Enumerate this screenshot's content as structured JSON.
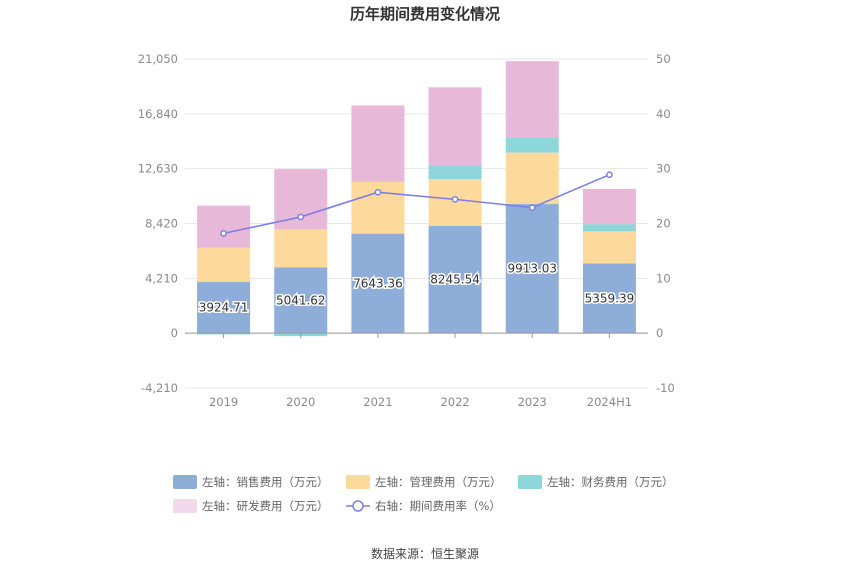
{
  "chart_data": {
    "type": "bar",
    "title": "历年期间费用变化情况",
    "categories": [
      "2019",
      "2020",
      "2021",
      "2022",
      "2023",
      "2024H1"
    ],
    "left_axis": {
      "ticks": [
        -4210,
        0,
        4210,
        8420,
        12630,
        16840,
        21050
      ],
      "tick_labels": [
        "-4,210",
        "0",
        "4,210",
        "8,420",
        "12,630",
        "16,840",
        "21,050"
      ],
      "ylim": [
        -4210,
        21050
      ]
    },
    "right_axis": {
      "ticks": [
        -10,
        0,
        10,
        20,
        30,
        40,
        50
      ],
      "tick_labels": [
        "-10",
        "0",
        "10",
        "20",
        "30",
        "40",
        "50"
      ],
      "ylim": [
        -10,
        50
      ]
    },
    "series": [
      {
        "name": "左轴：销售费用（万元）",
        "type": "bar",
        "axis": "left",
        "color": "#8eadd9",
        "values": [
          3924.71,
          5041.62,
          7643.36,
          8245.54,
          9913.03,
          5359.39
        ],
        "labels": [
          "3924.71",
          "5041.62",
          "7643.36",
          "8245.54",
          "9913.03",
          "5359.39"
        ]
      },
      {
        "name": "左轴：管理费用（万元）",
        "type": "bar",
        "axis": "left",
        "color": "#fdd99b",
        "values": [
          2650,
          2930,
          3970,
          3580,
          3950,
          2460
        ]
      },
      {
        "name": "左轴：财务费用（万元）",
        "type": "bar",
        "axis": "left",
        "color": "#8dd6da",
        "values": [
          -100,
          -230,
          0,
          1050,
          1120,
          550
        ]
      },
      {
        "name": "左轴：研发费用（万元）",
        "type": "bar",
        "axis": "left",
        "color": "#e8b8d9",
        "values": [
          3220,
          4620,
          5870,
          6000,
          5900,
          2700
        ]
      },
      {
        "name": "右轴：期间费用率（%）",
        "type": "line",
        "axis": "right",
        "color": "#7b7fe6",
        "values": [
          18.2,
          21.2,
          25.7,
          24.4,
          22.9,
          28.9
        ]
      }
    ],
    "legend_position": "bottom",
    "grid": true
  },
  "source_text": "数据来源：恒生聚源"
}
